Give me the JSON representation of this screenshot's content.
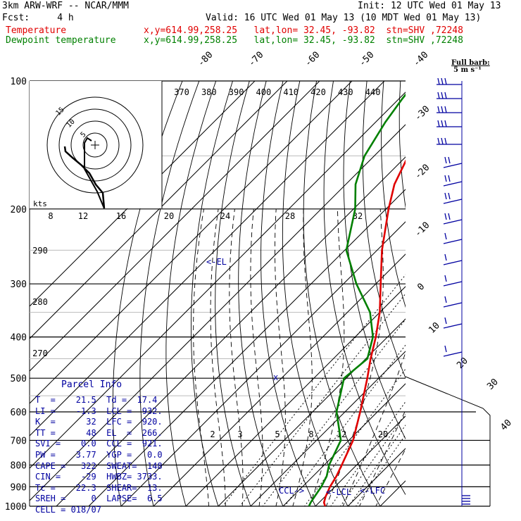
{
  "header": {
    "model": "3km ARW-WRF -- NCAR/MMM",
    "init": "Init: 12 UTC Wed 01 May 13",
    "fcst": "Fcst:     4 h",
    "valid": "Valid: 16 UTC Wed 01 May 13 (10 MDT Wed 01 May 13)",
    "temp_label": "Temperature",
    "temp_info": "x,y=614.99,258.25   lat,lon= 32.45, -93.82  stn=SHV ,72248",
    "dew_label": "Dewpoint temperature",
    "dew_info": "x,y=614.99,258.25   lat,lon= 32.45, -93.82  stn=SHV ,72248"
  },
  "colors": {
    "temperature": "#e00000",
    "dewpoint": "#008000",
    "wind": "#0000a0",
    "parcel_title": "#0000a0"
  },
  "barb_legend": {
    "line1": "Full barb:",
    "line2": "5 m s⁻¹"
  },
  "hodograph": {
    "unit": "kts",
    "ring_labels": [
      "5",
      "10",
      "15"
    ]
  },
  "parcel_info": {
    "title": "Parcel Info",
    "rows": [
      "T  =    21.5  Td =  17.4",
      "LI =    -1.3  LCL =  932.",
      "K  =      32  LFC =  920.",
      "TT =      48  EL  =  266.",
      "SVI =    0.0  CCL =  921.",
      "PW =    3.77  YGP =   0.0",
      "CAPE =   322  SWEAT=  148",
      "CIN =    -29  HWBZ= 3733.",
      "Tc =    22.3  SHEAR=  13.",
      "SREH =     0  LAPSE=  6.5",
      "CELL = 018/07"
    ]
  },
  "chart_data": {
    "type": "line",
    "diagram": "skew-T log-p",
    "y_axis": {
      "label": "Pressure (hPa)",
      "ticks": [
        100,
        200,
        300,
        400,
        500,
        600,
        700,
        800,
        900,
        1000
      ],
      "scale": "log",
      "ylim": [
        1000,
        100
      ]
    },
    "isotherm_labels": [
      "-80",
      "-70",
      "-60",
      "-50",
      "-40",
      "-30",
      "-20",
      "-10",
      "0",
      "10",
      "20",
      "30",
      "40"
    ],
    "theta_labels_top": [
      "370",
      "380",
      "390",
      "400",
      "410",
      "420",
      "430",
      "440"
    ],
    "theta_labels_left": [
      "290",
      "280",
      "270"
    ],
    "mixing_ratio_labels_upper": [
      "8",
      "12",
      "16",
      "20",
      "24",
      "28",
      "32"
    ],
    "mixing_ratio_labels_lower": [
      "2",
      "3",
      "5",
      "8",
      "12",
      "20"
    ],
    "level_markers": [
      "<-EL",
      "CCL->",
      "<-LCL",
      "<-LFC"
    ],
    "series": [
      {
        "name": "Temperature",
        "color": "#e00000",
        "points": [
          [
            1000,
            23.0
          ],
          [
            980,
            21.5
          ],
          [
            950,
            20.2
          ],
          [
            900,
            18.5
          ],
          [
            850,
            17.2
          ],
          [
            800,
            15.4
          ],
          [
            700,
            11.3
          ],
          [
            600,
            4.7
          ],
          [
            500,
            -3.5
          ],
          [
            450,
            -8.5
          ],
          [
            400,
            -13.6
          ],
          [
            350,
            -20.0
          ],
          [
            300,
            -28.5
          ],
          [
            250,
            -38.5
          ],
          [
            200,
            -49.2
          ],
          [
            175,
            -55.0
          ],
          [
            150,
            -59.5
          ],
          [
            125,
            -62.0
          ],
          [
            110,
            -64.0
          ],
          [
            100,
            -65.5
          ]
        ]
      },
      {
        "name": "Dewpoint temperature",
        "color": "#008000",
        "points": [
          [
            1000,
            18.0
          ],
          [
            980,
            17.4
          ],
          [
            950,
            16.8
          ],
          [
            900,
            15.8
          ],
          [
            850,
            14.2
          ],
          [
            800,
            11.5
          ],
          [
            700,
            7.5
          ],
          [
            600,
            -2.6
          ],
          [
            500,
            -10.7
          ],
          [
            450,
            -9.5
          ],
          [
            400,
            -14.5
          ],
          [
            350,
            -23.0
          ],
          [
            300,
            -36.0
          ],
          [
            250,
            -49.5
          ],
          [
            200,
            -59.5
          ],
          [
            175,
            -67.0
          ],
          [
            150,
            -73.0
          ],
          [
            125,
            -77.0
          ],
          [
            110,
            -79.0
          ],
          [
            100,
            -80.0
          ]
        ]
      }
    ]
  }
}
